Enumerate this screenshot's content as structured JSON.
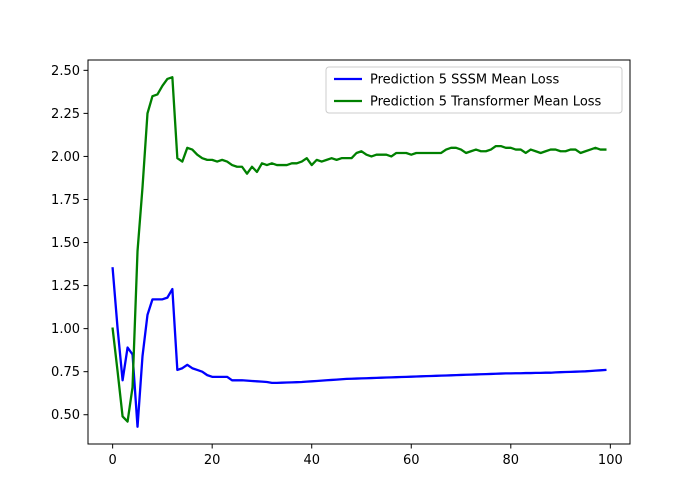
{
  "chart_data": {
    "type": "line",
    "title": "",
    "xlabel": "",
    "ylabel": "",
    "xlim": [
      -4.95,
      103.95
    ],
    "ylim": [
      0.33,
      2.56
    ],
    "xticks": [
      0,
      20,
      40,
      60,
      80,
      100
    ],
    "yticks": [
      0.5,
      0.75,
      1.0,
      1.25,
      1.5,
      1.75,
      2.0,
      2.25,
      2.5
    ],
    "xtick_labels": [
      "0",
      "20",
      "40",
      "60",
      "80",
      "100"
    ],
    "ytick_labels": [
      "0.50",
      "0.75",
      "1.00",
      "1.25",
      "1.50",
      "1.75",
      "2.00",
      "2.25",
      "2.50"
    ],
    "grid": false,
    "legend_position": "upper right",
    "x": [
      0,
      1,
      2,
      3,
      4,
      5,
      6,
      7,
      8,
      9,
      10,
      11,
      12,
      13,
      14,
      15,
      16,
      17,
      18,
      19,
      20,
      21,
      22,
      23,
      24,
      25,
      26,
      27,
      28,
      29,
      30,
      31,
      32,
      33,
      34,
      35,
      36,
      37,
      38,
      39,
      40,
      41,
      42,
      43,
      44,
      45,
      46,
      47,
      48,
      49,
      50,
      51,
      52,
      53,
      54,
      55,
      56,
      57,
      58,
      59,
      60,
      61,
      62,
      63,
      64,
      65,
      66,
      67,
      68,
      69,
      70,
      71,
      72,
      73,
      74,
      75,
      76,
      77,
      78,
      79,
      80,
      81,
      82,
      83,
      84,
      85,
      86,
      87,
      88,
      89,
      90,
      91,
      92,
      93,
      94,
      95,
      96,
      97,
      98,
      99
    ],
    "series": [
      {
        "name": "Prediction 5 SSSM Mean Loss",
        "color": "#0000ff",
        "values": [
          1.35,
          1.0,
          0.7,
          0.89,
          0.85,
          0.43,
          0.84,
          1.08,
          1.17,
          1.17,
          1.17,
          1.18,
          1.23,
          0.76,
          0.77,
          0.79,
          0.77,
          0.76,
          0.75,
          0.73,
          0.72,
          0.72,
          0.72,
          0.72,
          0.7,
          0.7,
          0.7,
          0.698,
          0.696,
          0.694,
          0.692,
          0.69,
          0.685,
          0.685,
          0.686,
          0.687,
          0.688,
          0.689,
          0.69,
          0.692,
          0.694,
          0.696,
          0.698,
          0.7,
          0.702,
          0.704,
          0.706,
          0.708,
          0.709,
          0.71,
          0.711,
          0.712,
          0.713,
          0.714,
          0.715,
          0.716,
          0.717,
          0.718,
          0.719,
          0.72,
          0.721,
          0.722,
          0.723,
          0.724,
          0.725,
          0.726,
          0.727,
          0.728,
          0.729,
          0.73,
          0.731,
          0.732,
          0.733,
          0.734,
          0.735,
          0.736,
          0.737,
          0.738,
          0.739,
          0.74,
          0.74,
          0.741,
          0.741,
          0.742,
          0.742,
          0.743,
          0.743,
          0.744,
          0.744,
          0.746,
          0.747,
          0.748,
          0.749,
          0.75,
          0.751,
          0.752,
          0.754,
          0.756,
          0.758,
          0.76
        ]
      },
      {
        "name": "Prediction 5 Transformer Mean Loss",
        "color": "#008000",
        "values": [
          1.0,
          0.75,
          0.49,
          0.46,
          0.66,
          1.45,
          1.82,
          2.25,
          2.35,
          2.36,
          2.41,
          2.45,
          2.46,
          1.99,
          1.97,
          2.05,
          2.04,
          2.01,
          1.99,
          1.98,
          1.98,
          1.97,
          1.98,
          1.97,
          1.95,
          1.94,
          1.94,
          1.9,
          1.94,
          1.91,
          1.96,
          1.95,
          1.96,
          1.95,
          1.95,
          1.95,
          1.96,
          1.96,
          1.97,
          1.99,
          1.95,
          1.98,
          1.97,
          1.98,
          1.99,
          1.98,
          1.99,
          1.99,
          1.99,
          2.02,
          2.03,
          2.01,
          2.0,
          2.01,
          2.01,
          2.01,
          2.0,
          2.02,
          2.02,
          2.02,
          2.01,
          2.02,
          2.02,
          2.02,
          2.02,
          2.02,
          2.02,
          2.04,
          2.05,
          2.05,
          2.04,
          2.02,
          2.03,
          2.04,
          2.03,
          2.03,
          2.04,
          2.06,
          2.06,
          2.05,
          2.05,
          2.04,
          2.04,
          2.02,
          2.04,
          2.03,
          2.02,
          2.03,
          2.04,
          2.04,
          2.03,
          2.03,
          2.04,
          2.04,
          2.02,
          2.03,
          2.04,
          2.05,
          2.04,
          2.04
        ]
      }
    ]
  }
}
